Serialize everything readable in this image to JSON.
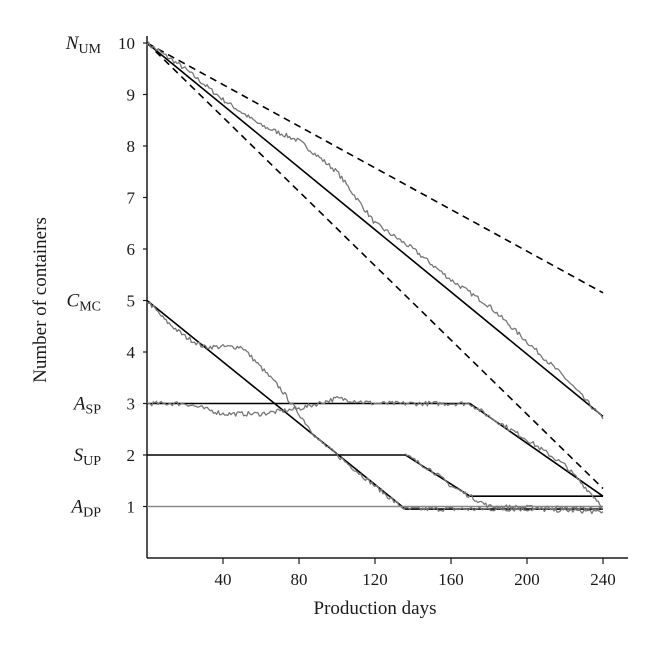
{
  "chart_data": {
    "type": "line",
    "xlabel": "Production days",
    "ylabel": "Number of containers",
    "xlim": [
      0,
      240
    ],
    "ylim": [
      0,
      10
    ],
    "x_ticks": [
      40,
      80,
      120,
      160,
      200,
      240
    ],
    "y_ticks": [
      1,
      2,
      3,
      4,
      5,
      6,
      7,
      8,
      9,
      10
    ],
    "grid": false,
    "level_labels": [
      {
        "main": "N",
        "sub": "UM",
        "y": 10
      },
      {
        "main": "C",
        "sub": "MC",
        "y": 5
      },
      {
        "main": "A",
        "sub": "SP",
        "y": 3
      },
      {
        "main": "S",
        "sub": "UP",
        "y": 2
      },
      {
        "main": "A",
        "sub": "DP",
        "y": 1
      }
    ],
    "series": [
      {
        "style": "dashed",
        "color": "#000000",
        "x": [
          0,
          240
        ],
        "y": [
          10,
          5.15
        ]
      },
      {
        "style": "dashed",
        "color": "#000000",
        "x": [
          0,
          240
        ],
        "y": [
          10,
          1.35
        ]
      },
      {
        "style": "solid",
        "color": "#000000",
        "x": [
          0,
          240
        ],
        "y": [
          10,
          2.75
        ]
      },
      {
        "style": "solid",
        "color": "#000000",
        "x": [
          0,
          136,
          240
        ],
        "y": [
          5,
          0.95,
          0.95
        ]
      },
      {
        "style": "solid",
        "color": "#000000",
        "x": [
          0,
          170,
          240
        ],
        "y": [
          3,
          3,
          1.2
        ]
      },
      {
        "style": "solid",
        "color": "#000000",
        "x": [
          0,
          136,
          170,
          240
        ],
        "y": [
          2,
          2,
          1.2,
          1.2
        ]
      },
      {
        "style": "solid",
        "color": "#888888",
        "x": [
          0,
          240
        ],
        "y": [
          1,
          1
        ]
      },
      {
        "style": "noisy",
        "color": "#777777",
        "x": [
          0,
          20,
          40,
          60,
          80,
          100,
          120,
          140,
          160,
          180,
          200,
          220,
          240
        ],
        "y": [
          10,
          9.5,
          8.9,
          8.4,
          8.1,
          7.5,
          6.5,
          6.0,
          5.4,
          4.9,
          4.2,
          3.5,
          2.7
        ]
      },
      {
        "style": "noisy",
        "color": "#777777",
        "x": [
          0,
          10,
          20,
          30,
          40,
          50,
          60,
          70,
          80,
          90,
          100,
          110,
          120,
          130,
          136,
          160,
          200,
          240
        ],
        "y": [
          5,
          4.6,
          4.3,
          4.1,
          4.1,
          4.1,
          3.7,
          3.3,
          2.8,
          2.3,
          2.0,
          1.7,
          1.4,
          1.1,
          0.95,
          0.95,
          0.95,
          0.9
        ]
      },
      {
        "style": "noisy",
        "color": "#777777",
        "x": [
          0,
          20,
          40,
          60,
          80,
          100,
          120,
          140,
          160,
          170,
          180,
          200,
          220,
          230,
          240
        ],
        "y": [
          3.0,
          3.0,
          2.8,
          2.8,
          2.9,
          3.1,
          3.0,
          3.0,
          3.0,
          3.0,
          2.75,
          2.3,
          1.8,
          1.4,
          1.0
        ]
      },
      {
        "style": "noisy",
        "color": "#777777",
        "x": [
          136,
          150,
          160,
          170,
          180,
          200,
          220,
          240
        ],
        "y": [
          2.0,
          1.7,
          1.4,
          1.2,
          1.0,
          0.98,
          0.97,
          0.95
        ]
      }
    ]
  }
}
